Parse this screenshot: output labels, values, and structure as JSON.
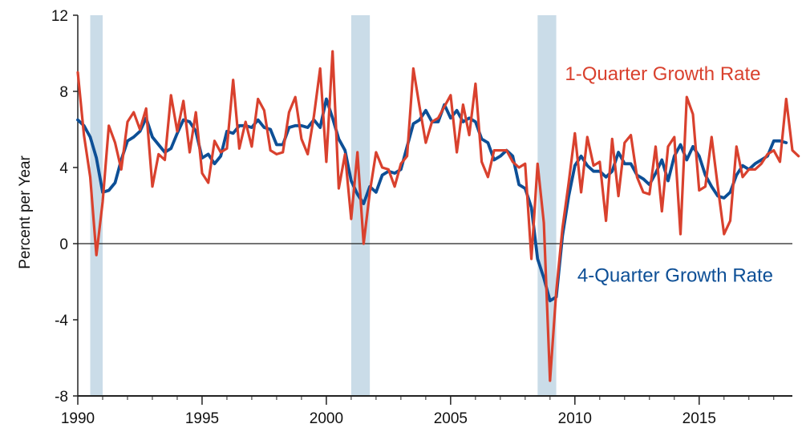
{
  "chart_data": {
    "type": "line",
    "ylabel": "Percent per Year",
    "ylim": [
      -8,
      12
    ],
    "xlim": [
      1990.0,
      2018.75
    ],
    "yticks": [
      -8,
      -4,
      0,
      4,
      8,
      12
    ],
    "xticks": [
      1990,
      1995,
      2000,
      2005,
      2010,
      2015
    ],
    "grid": false,
    "recessions": [
      {
        "start": 1990.5,
        "end": 1991.0
      },
      {
        "start": 2001.0,
        "end": 2001.75
      },
      {
        "start": 2008.5,
        "end": 2009.25
      }
    ],
    "recession_color": "#cadce8",
    "series": [
      {
        "name": "1-Quarter Growth Rate",
        "color": "#d9412e",
        "x_start": 1990.0,
        "x_step": 0.25,
        "values": [
          9.0,
          5.7,
          3.5,
          -0.6,
          2.2,
          6.2,
          5.3,
          3.9,
          6.4,
          6.9,
          6.0,
          7.1,
          3.0,
          4.7,
          4.4,
          7.8,
          5.9,
          7.5,
          4.8,
          6.9,
          3.7,
          3.2,
          5.4,
          4.8,
          5.0,
          8.6,
          5.0,
          6.4,
          5.1,
          7.6,
          7.0,
          4.9,
          4.7,
          4.8,
          6.9,
          7.7,
          5.5,
          4.7,
          6.7,
          9.2,
          4.3,
          10.1,
          2.9,
          4.7,
          1.3,
          4.8,
          0.0,
          2.7,
          4.8,
          4.0,
          3.9,
          3.0,
          4.2,
          4.6,
          9.2,
          7.2,
          5.3,
          6.4,
          6.6,
          7.2,
          7.8,
          4.8,
          7.3,
          5.7,
          8.4,
          4.3,
          3.5,
          4.9,
          4.9,
          4.9,
          4.3,
          4.0,
          4.2,
          -0.8,
          4.2,
          1.1,
          -7.2,
          -2.5,
          0.8,
          3.2,
          5.8,
          2.7,
          5.6,
          4.1,
          4.3,
          1.2,
          5.5,
          2.5,
          5.3,
          5.7,
          3.5,
          2.7,
          2.6,
          5.1,
          1.7,
          5.1,
          5.6,
          0.5,
          7.7,
          6.8,
          2.8,
          3.0,
          5.6,
          3.0,
          0.5,
          1.2,
          5.1,
          3.5,
          3.9,
          3.9,
          4.2,
          4.7,
          4.9,
          4.3,
          7.6,
          4.9,
          4.6
        ]
      },
      {
        "name": "4-Quarter Growth Rate",
        "color": "#0d4f96",
        "x_start": 1990.0,
        "x_step": 0.25,
        "values": [
          6.5,
          6.2,
          5.6,
          4.5,
          2.7,
          2.8,
          3.2,
          4.4,
          5.4,
          5.6,
          5.9,
          6.6,
          5.6,
          5.2,
          4.8,
          5.0,
          5.8,
          6.5,
          6.4,
          5.9,
          4.5,
          4.7,
          4.2,
          4.6,
          5.9,
          5.8,
          6.2,
          6.2,
          6.1,
          6.5,
          6.1,
          6.0,
          5.2,
          5.2,
          6.1,
          6.2,
          6.2,
          6.1,
          6.5,
          6.1,
          7.6,
          6.6,
          5.5,
          4.9,
          3.3,
          2.6,
          2.1,
          3.0,
          2.7,
          3.6,
          3.8,
          3.7,
          3.9,
          5.1,
          6.3,
          6.5,
          7.0,
          6.4,
          6.4,
          7.3,
          6.6,
          7.0,
          6.4,
          6.6,
          6.4,
          5.5,
          5.3,
          4.4,
          4.6,
          4.9,
          4.6,
          3.1,
          2.9,
          1.9,
          -0.8,
          -1.8,
          -3.0,
          -2.8,
          0.4,
          2.5,
          4.1,
          4.6,
          4.1,
          3.8,
          3.8,
          3.5,
          3.8,
          4.8,
          4.2,
          4.2,
          3.6,
          3.4,
          3.1,
          3.7,
          4.4,
          3.3,
          4.6,
          5.2,
          4.4,
          5.1,
          4.6,
          3.6,
          3.0,
          2.5,
          2.4,
          2.7,
          3.6,
          4.1,
          3.9,
          4.2,
          4.4,
          4.6,
          5.4,
          5.4,
          5.3
        ]
      }
    ],
    "series_labels": [
      {
        "text": "1-Quarter Growth Rate",
        "at": [
          2009.6,
          8.6
        ],
        "color": "#d9412e"
      },
      {
        "text": "4-Quarter Growth Rate",
        "at": [
          2010.1,
          -2.0
        ],
        "color": "#0d4f96"
      }
    ]
  }
}
